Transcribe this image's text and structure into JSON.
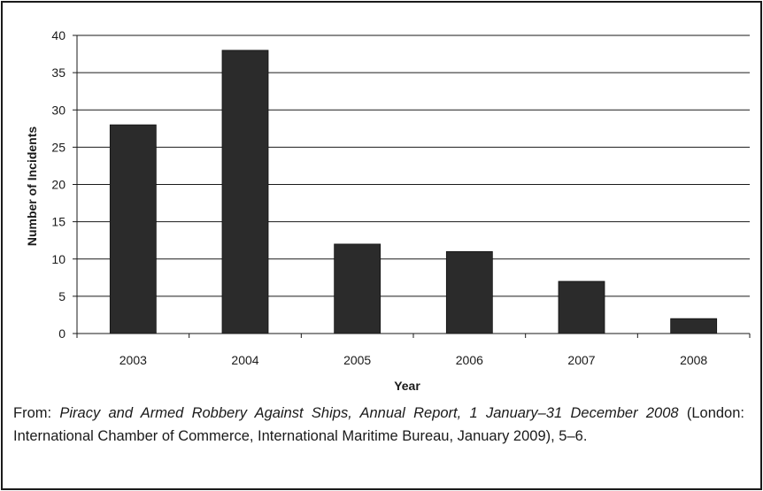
{
  "chart_data": {
    "type": "bar",
    "categories": [
      "2003",
      "2004",
      "2005",
      "2006",
      "2007",
      "2008"
    ],
    "values": [
      28,
      38,
      12,
      11,
      7,
      2
    ],
    "xlabel": "Year",
    "ylabel": "Number of Incidents",
    "ylim": [
      0,
      40
    ],
    "yticks": [
      "0",
      "5",
      "10",
      "15",
      "20",
      "25",
      "30",
      "35",
      "40"
    ],
    "grid": true,
    "bar_color": "#2b2b2b"
  },
  "caption": {
    "prefix": "From: ",
    "title": "Piracy and Armed Robbery Against Ships, Annual Report, 1 January–31 December 2008",
    "rest": " (London: International Chamber of Commerce, International Maritime Bureau, January 2009), 5–6."
  }
}
